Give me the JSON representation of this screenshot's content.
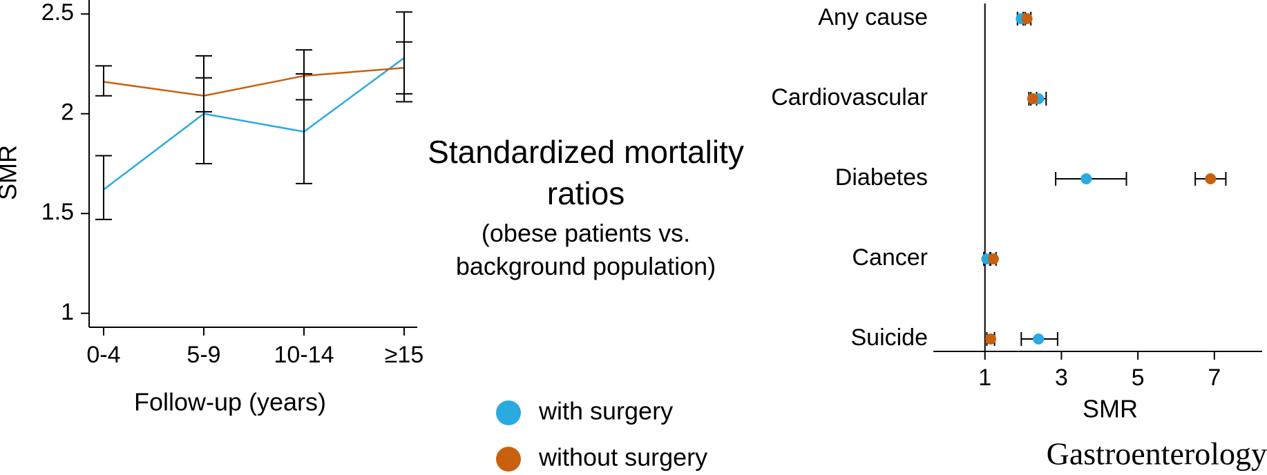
{
  "chart_data": [
    {
      "type": "line",
      "y_label": "SMR",
      "x_label": "Follow-up (years)",
      "categories": [
        "0-4",
        "5-9",
        "10-14",
        "≥15"
      ],
      "series": [
        {
          "name": "with surgery",
          "color": "#29aae1",
          "values": [
            1.62,
            2.0,
            1.91,
            2.28
          ],
          "lower": [
            1.47,
            1.75,
            1.65,
            2.06
          ],
          "upper": [
            1.79,
            2.29,
            2.2,
            2.51
          ]
        },
        {
          "name": "without surgery",
          "color": "#c8600f",
          "values": [
            2.16,
            2.09,
            2.19,
            2.23
          ],
          "lower": [
            2.09,
            2.01,
            2.07,
            2.1
          ],
          "upper": [
            2.24,
            2.18,
            2.32,
            2.36
          ]
        }
      ],
      "ylim": [
        0.93,
        2.57
      ],
      "yticks": [
        1,
        1.5,
        2,
        2.5
      ]
    },
    {
      "type": "forest",
      "x_label": "SMR",
      "categories": [
        "Any cause",
        "Cardiovascular",
        "Diabetes",
        "Cancer",
        "Suicide"
      ],
      "series": [
        {
          "name": "with surgery",
          "color": "#29aae1",
          "values": [
            1.95,
            2.4,
            3.65,
            1.05,
            2.4
          ],
          "lower": [
            1.85,
            2.2,
            2.85,
            0.97,
            1.95
          ],
          "upper": [
            2.05,
            2.6,
            4.7,
            1.13,
            2.9
          ]
        },
        {
          "name": "without surgery",
          "color": "#c8600f",
          "values": [
            2.1,
            2.25,
            6.9,
            1.22,
            1.15
          ],
          "lower": [
            2.0,
            2.15,
            6.5,
            1.15,
            1.05
          ],
          "upper": [
            2.2,
            2.35,
            7.3,
            1.29,
            1.25
          ]
        }
      ],
      "xlim": [
        -0.35,
        8.25
      ],
      "xticks": [
        1,
        3,
        5,
        7
      ],
      "reference_line": 1
    }
  ],
  "title": "Standardized mortality ratios",
  "subtitle": "(obese patients vs. background population)",
  "journal": "Gastroenterology"
}
